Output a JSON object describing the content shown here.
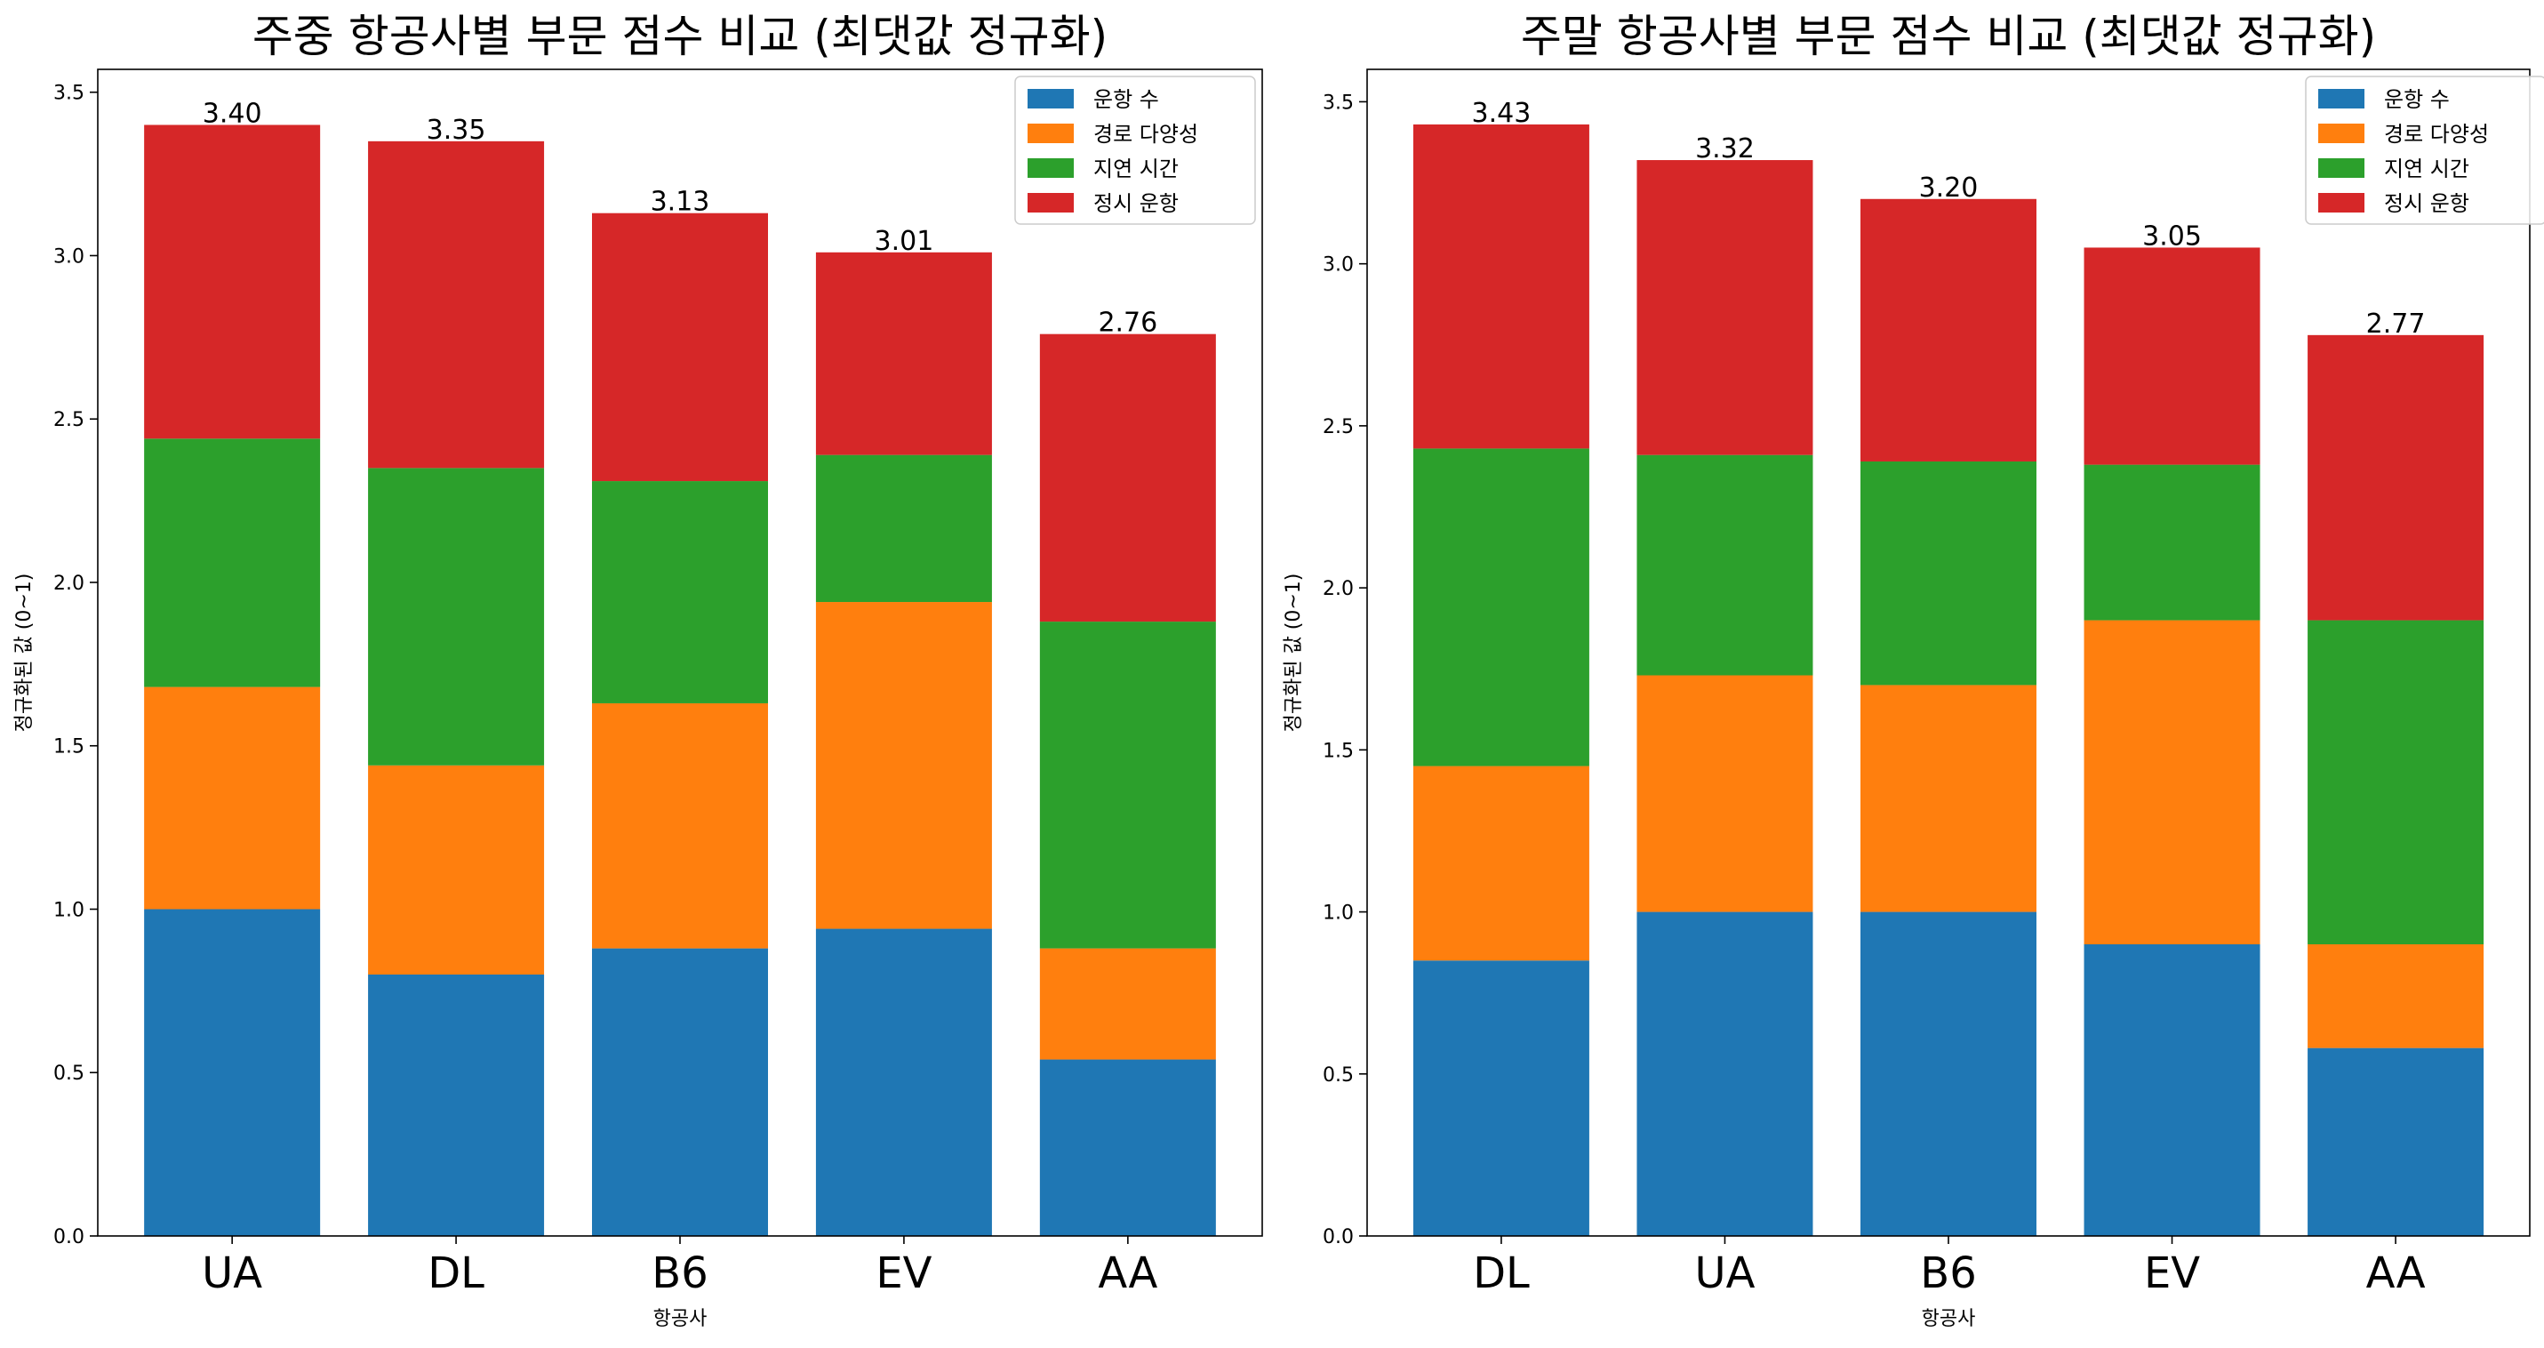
{
  "chart_data": [
    {
      "type": "bar",
      "stacked": true,
      "title": "주중 항공사별 부문 점수 비교 (최댓값 정규화)",
      "xlabel": "항공사",
      "ylabel": "정규화된 값 (0~1)",
      "ylim": [
        0,
        3.57
      ],
      "yticks": [
        0.0,
        0.5,
        1.0,
        1.5,
        2.0,
        2.5,
        3.0,
        3.5
      ],
      "ytick_labels": [
        "0.0",
        "0.5",
        "1.0",
        "1.5",
        "2.0",
        "2.5",
        "3.0",
        "3.5"
      ],
      "categories": [
        "UA",
        "DL",
        "B6",
        "EV",
        "AA"
      ],
      "series": [
        {
          "name": "운항 수",
          "color": "#1f77b4",
          "values": [
            1.0,
            0.8,
            0.88,
            0.94,
            0.54
          ]
        },
        {
          "name": "경로 다양성",
          "color": "#ff7f0e",
          "values": [
            0.68,
            0.64,
            0.75,
            1.0,
            0.34
          ]
        },
        {
          "name": "지연 시간",
          "color": "#2ca02c",
          "values": [
            0.76,
            0.91,
            0.68,
            0.45,
            1.0
          ]
        },
        {
          "name": "정시 운항",
          "color": "#d62728",
          "values": [
            0.96,
            1.0,
            0.82,
            0.62,
            0.88
          ]
        }
      ],
      "totals": [
        "3.40",
        "3.35",
        "3.13",
        "3.01",
        "2.76"
      ],
      "legend_position": "top-right"
    },
    {
      "type": "bar",
      "stacked": true,
      "title": "주말 항공사별 부문 점수 비교 (최댓값 정규화)",
      "xlabel": "항공사",
      "ylabel": "정규화된 값 (0~1)",
      "ylim": [
        0,
        3.6
      ],
      "yticks": [
        0.0,
        0.5,
        1.0,
        1.5,
        2.0,
        2.5,
        3.0,
        3.5
      ],
      "ytick_labels": [
        "0.0",
        "0.5",
        "1.0",
        "1.5",
        "2.0",
        "2.5",
        "3.0",
        "3.5"
      ],
      "categories": [
        "DL",
        "UA",
        "B6",
        "EV",
        "AA"
      ],
      "series": [
        {
          "name": "운항 수",
          "color": "#1f77b4",
          "values": [
            0.85,
            1.0,
            1.0,
            0.9,
            0.58
          ]
        },
        {
          "name": "경로 다양성",
          "color": "#ff7f0e",
          "values": [
            0.6,
            0.73,
            0.7,
            1.0,
            0.32
          ]
        },
        {
          "name": "지연 시간",
          "color": "#2ca02c",
          "values": [
            0.98,
            0.68,
            0.69,
            0.48,
            1.0
          ]
        },
        {
          "name": "정시 운항",
          "color": "#d62728",
          "values": [
            1.0,
            0.91,
            0.81,
            0.67,
            0.88
          ]
        }
      ],
      "totals": [
        "3.43",
        "3.32",
        "3.20",
        "3.05",
        "2.77"
      ],
      "legend_position": "top-right"
    }
  ]
}
